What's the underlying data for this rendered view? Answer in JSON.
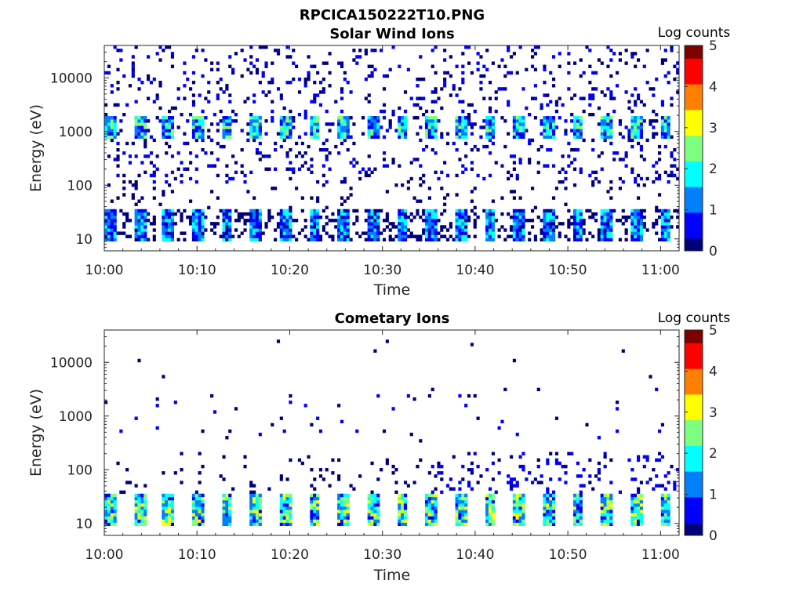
{
  "figure_title": "RPCICA150222T10.PNG",
  "colorscale": [
    "#00007f",
    "#0000ff",
    "#007fff",
    "#00ffff",
    "#7fff7f",
    "#ffff00",
    "#ff7f00",
    "#ff0000",
    "#7f0000"
  ],
  "chart_data": [
    {
      "type": "heatmap",
      "title": "Solar Wind Ions",
      "xlabel": "Time",
      "ylabel": "Energy (eV)",
      "x_range": [
        "10:00",
        "11:02"
      ],
      "x_ticks": [
        "10:00",
        "10:10",
        "10:20",
        "10:30",
        "10:40",
        "10:50",
        "11:00"
      ],
      "y_scale": "log",
      "y_range": [
        6,
        40000
      ],
      "y_ticks": [
        10,
        100,
        1000,
        10000
      ],
      "y_tick_labels": [
        "10",
        "100",
        "1000",
        "10000"
      ],
      "colorbar": {
        "label": "Log counts",
        "range": [
          0,
          5
        ],
        "ticks": [
          "0",
          "1",
          "2",
          "3",
          "4",
          "5"
        ]
      },
      "bands": [
        {
          "name": "high-energy peaks",
          "energy_eV": [
            700,
            1800
          ],
          "max_log_counts": 2.7
        },
        {
          "name": "low-energy peaks",
          "energy_eV": [
            8,
            35
          ],
          "max_log_counts": 2.0
        }
      ]
    },
    {
      "type": "heatmap",
      "title": "Cometary Ions",
      "xlabel": "Time",
      "ylabel": "Energy (eV)",
      "x_range": [
        "10:00",
        "11:02"
      ],
      "x_ticks": [
        "10:00",
        "10:10",
        "10:20",
        "10:30",
        "10:40",
        "10:50",
        "11:00"
      ],
      "y_scale": "log",
      "y_range": [
        6,
        40000
      ],
      "y_ticks": [
        10,
        100,
        1000,
        10000
      ],
      "y_tick_labels": [
        "10",
        "100",
        "1000",
        "10000"
      ],
      "colorbar": {
        "label": "Log counts",
        "range": [
          0,
          5
        ],
        "ticks": [
          "0",
          "1",
          "2",
          "3",
          "4",
          "5"
        ]
      },
      "bands": [
        {
          "name": "low-energy peaks",
          "energy_eV": [
            8,
            35
          ],
          "max_log_counts": 3.2
        }
      ]
    }
  ]
}
